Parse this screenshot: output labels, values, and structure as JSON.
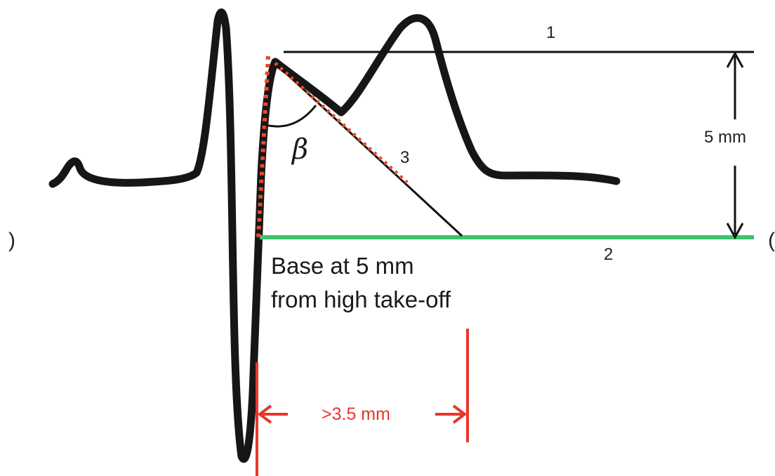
{
  "labels": {
    "line1": "1",
    "line2": "2",
    "line3": "3",
    "height": "5 mm",
    "angle": "β",
    "base_line1": "Base at 5 mm",
    "base_line2": "from high take-off",
    "width": ">3.5 mm",
    "left_edge": ")",
    "right_edge": "("
  },
  "colors": {
    "trace": "#161616",
    "reference_line": "#111111",
    "base_line": "#3cc46a",
    "measurement": "#e8362b",
    "dotted_tangent": "#e8482b"
  }
}
